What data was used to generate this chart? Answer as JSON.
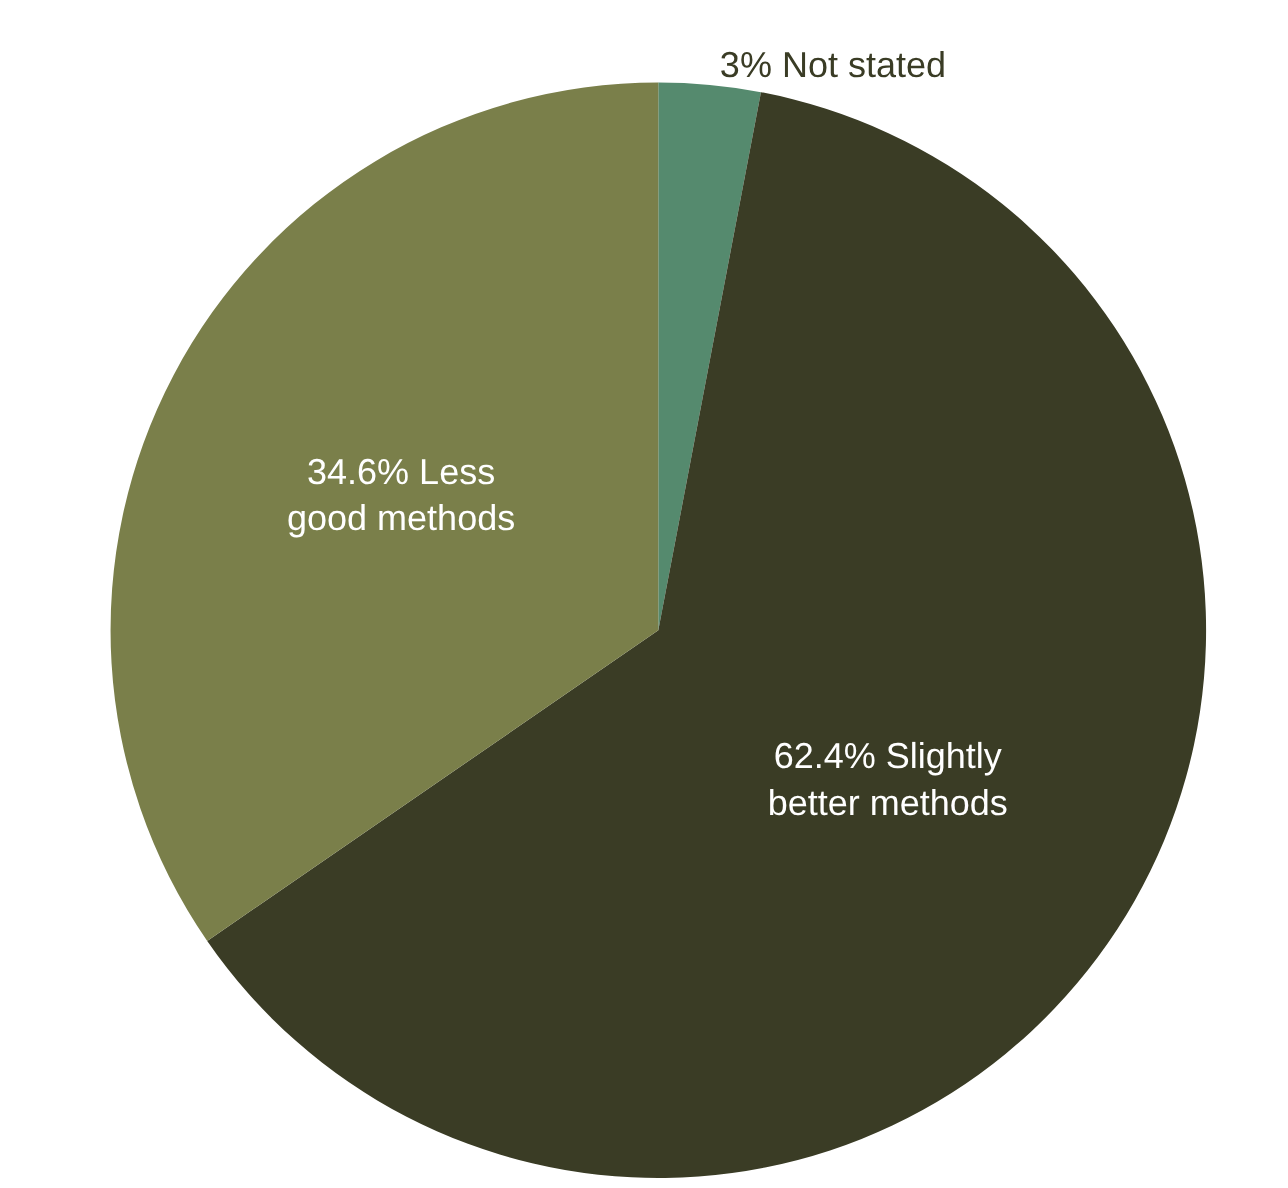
{
  "chart_data": {
    "type": "pie",
    "categories": [
      "Not stated",
      "Slightly better methods",
      "Less good methods"
    ],
    "values": [
      3,
      62.4,
      34.6
    ],
    "value_labels": [
      "3%",
      "62.4%",
      "34.6%"
    ],
    "colors": [
      "#558a6e",
      "#3a3c25",
      "#7a7f4a"
    ]
  }
}
